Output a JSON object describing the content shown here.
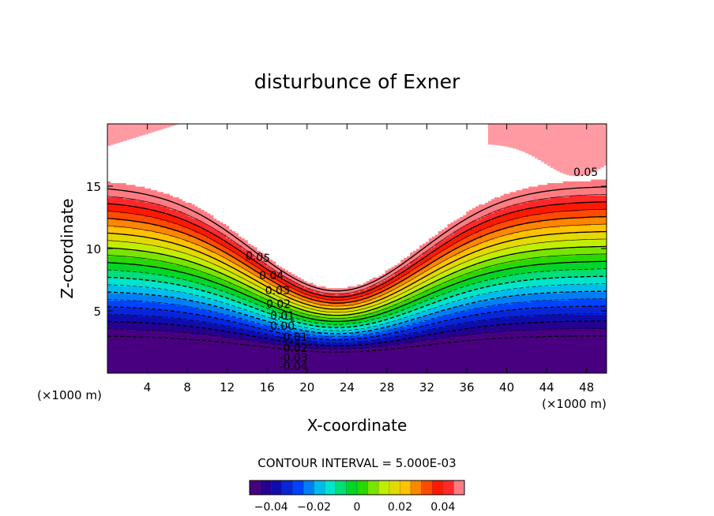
{
  "chart_data": {
    "type": "contour",
    "title": "disturbunce of Exner",
    "xlabel": "X-coordinate",
    "ylabel": "Z-coordinate",
    "x_unit_left": "(×1000 m)",
    "x_unit_right": "(×1000 m)",
    "xlim": [
      0,
      50
    ],
    "ylim": [
      0,
      20
    ],
    "x_ticks": [
      4,
      8,
      12,
      16,
      20,
      24,
      28,
      32,
      36,
      40,
      44,
      48
    ],
    "y_ticks": [
      5,
      10,
      15
    ],
    "contour_interval_text": "CONTOUR INTERVAL = 5.000E-03",
    "levels": {
      "min": -0.05,
      "max": 0.05,
      "step": 0.005
    },
    "field_description_points": {
      "note_hidden": false
    },
    "contour_labels": [
      "0.05",
      "0.04",
      "0.03",
      "0.02",
      "0.01",
      "0.00",
      "-0.01",
      "-0.02",
      "-0.03",
      "-0.04",
      "0.05"
    ],
    "colorbar": {
      "min": -0.05,
      "max": 0.05,
      "tick_values": [
        -0.04,
        -0.02,
        0,
        0.02,
        0.04
      ],
      "tick_labels": [
        "−0.04",
        "−0.02",
        "0",
        "0.02",
        "0.04"
      ]
    },
    "legend": "bottom-center colorbar",
    "grid": false
  }
}
